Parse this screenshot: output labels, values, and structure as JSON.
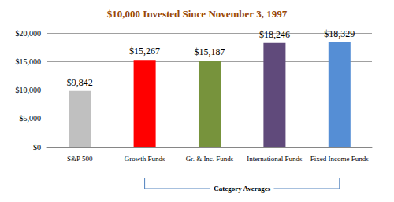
{
  "chart_data": {
    "type": "bar",
    "title": "$10,000 Invested Since November 3, 1997",
    "categories": [
      "S&P 500",
      "Growth Funds",
      "Gr. & Inc. Funds",
      "International Funds",
      "Fixed Income Funds"
    ],
    "values": [
      9842,
      15267,
      15187,
      18246,
      18329
    ],
    "value_labels": [
      "$9,842",
      "$15,267",
      "$15,187",
      "$18,246",
      "$18,329"
    ],
    "colors": [
      "#c0c0c0",
      "#ff0000",
      "#77933c",
      "#604a7b",
      "#558ed5"
    ],
    "ylim": [
      0,
      20000
    ],
    "yticks": [
      {
        "value": 0,
        "label": "$0"
      },
      {
        "value": 5000,
        "label": "$5,000"
      },
      {
        "value": 10000,
        "label": "$10,000"
      },
      {
        "value": 15000,
        "label": "$15,000"
      },
      {
        "value": 20000,
        "label": "$20,000"
      }
    ],
    "grid": true,
    "data_labels": true,
    "annotation": "Category Averages"
  }
}
